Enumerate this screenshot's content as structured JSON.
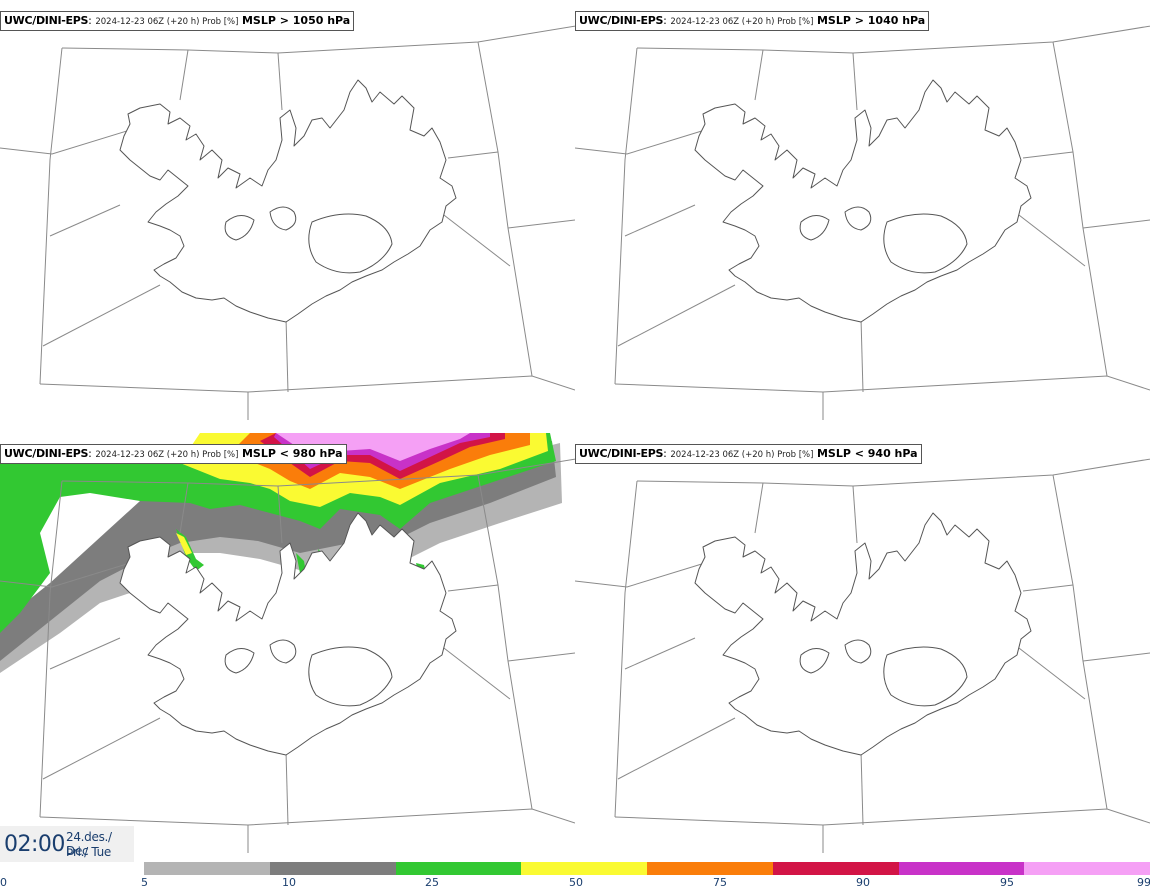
{
  "panels": [
    {
      "model": "UWC/DINI-EPS",
      "meta": "2024-12-23 06Z (+20 h) Prob [%]",
      "param": "MSLP > 1050 hPa",
      "shading": "none"
    },
    {
      "model": "UWC/DINI-EPS",
      "meta": "2024-12-23 06Z (+20 h) Prob [%]",
      "param": "MSLP > 1040 hPa",
      "shading": "none"
    },
    {
      "model": "UWC/DINI-EPS",
      "meta": "2024-12-23 06Z (+20 h) Prob [%]",
      "param": "MSLP < 980 hPa",
      "shading": "probability field north and west of coast"
    },
    {
      "model": "UWC/DINI-EPS",
      "meta": "2024-12-23 06Z (+20 h) Prob [%]",
      "param": "MSLP < 940 hPa",
      "shading": "none"
    }
  ],
  "time_box": {
    "time": "02:00",
    "date": "24.des./ Dec",
    "day": "Þri./ Tue"
  },
  "colorbar": {
    "ticks": [
      "0",
      "5",
      "10",
      "25",
      "50",
      "75",
      "90",
      "95",
      "99"
    ],
    "colors": [
      "#b4b4b4",
      "#7d7d7d",
      "#32c832",
      "#fafa32",
      "#fa7d0a",
      "#d21446",
      "#c832c8",
      "#f5a0f5"
    ]
  }
}
